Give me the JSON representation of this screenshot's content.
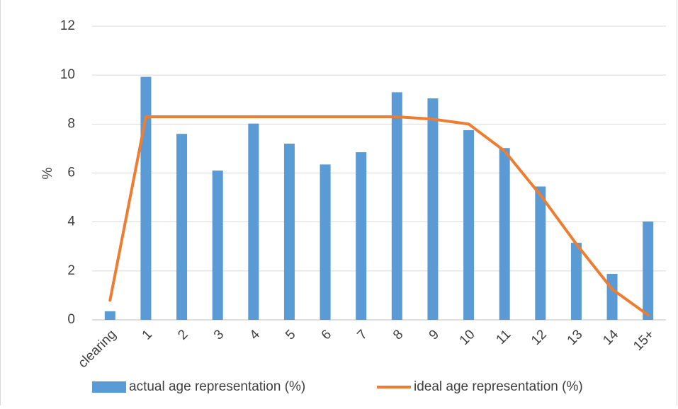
{
  "chart_data": {
    "type": "bar_line",
    "y_label": "%",
    "categories": [
      "clearing",
      "1",
      "2",
      "3",
      "4",
      "5",
      "6",
      "7",
      "8",
      "9",
      "10",
      "11",
      "12",
      "13",
      "14",
      "15+"
    ],
    "series": [
      {
        "name": "actual age representation (%)",
        "type": "bar",
        "color": "#5b9bd5",
        "values": [
          0.35,
          9.93,
          7.6,
          6.1,
          8.02,
          7.2,
          6.35,
          6.85,
          9.3,
          9.05,
          7.75,
          7.02,
          5.45,
          3.15,
          1.88,
          4.02
        ]
      },
      {
        "name": "ideal age representation (%)",
        "type": "line",
        "color": "#ed7d31",
        "values": [
          0.8,
          8.3,
          8.3,
          8.3,
          8.3,
          8.3,
          8.3,
          8.3,
          8.3,
          8.2,
          8.0,
          6.9,
          5.1,
          3.1,
          1.25,
          0.2
        ]
      }
    ],
    "ylim": [
      0,
      12
    ],
    "yticks": [
      0,
      2,
      4,
      6,
      8,
      10,
      12
    ],
    "grid": true,
    "legend": "bottom"
  }
}
